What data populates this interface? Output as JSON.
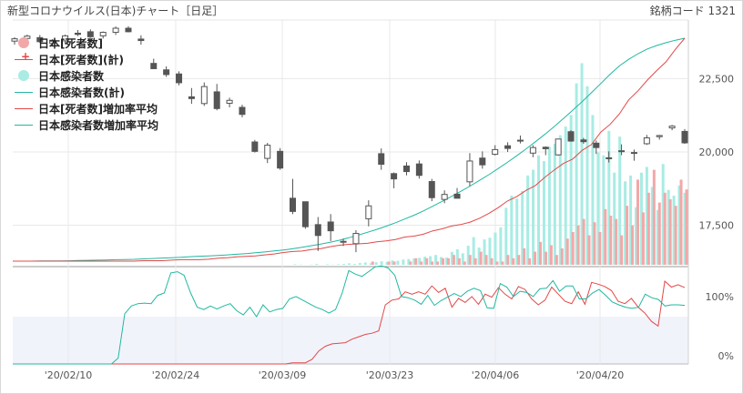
{
  "header": {
    "title": "新型コロナウイルス(日本)チャート［日足］",
    "code": "銘柄コード 1321"
  },
  "legend": {
    "items": [
      {
        "label": "日本[死者数]",
        "kind": "dot",
        "color": "#f2a8a8"
      },
      {
        "label": "日本[死者数](計)",
        "kind": "line-plus",
        "color": "#e34848"
      },
      {
        "label": "日本感染者数",
        "kind": "dot",
        "color": "#a8ece4"
      },
      {
        "label": "日本感染者数(計)",
        "kind": "line",
        "color": "#20b8a0"
      },
      {
        "label": "日本[死者数]増加率平均",
        "kind": "line",
        "color": "#e34848"
      },
      {
        "label": "日本感染者数増加率平均",
        "kind": "line",
        "color": "#20b8a0"
      }
    ]
  },
  "colors": {
    "deaths_bar": "#f2a8a8",
    "cases_bar": "#a8ece4",
    "deaths_line": "#e34848",
    "cases_line": "#20b8a0",
    "candle_down": "#555555",
    "candle_up": "#ffffff",
    "band": "#f1f3fb"
  },
  "chart_data": [
    {
      "type": "candlestick",
      "panel": "price",
      "y_ticks": [
        17500,
        20000,
        22500
      ],
      "ylim": [
        16150,
        24500
      ],
      "x_ticks": [
        "'20/02/10",
        "'20/02/24",
        "'20/03/09",
        "'20/03/23",
        "'20/04/06",
        "'20/04/20"
      ],
      "ohlc": [
        [
          23780,
          23910,
          23660,
          23860
        ],
        [
          23870,
          24000,
          23750,
          23950
        ],
        [
          23900,
          23990,
          23720,
          23760
        ],
        [
          23700,
          23850,
          23610,
          23810
        ],
        [
          23790,
          24000,
          23680,
          23960
        ],
        [
          24050,
          24160,
          23950,
          24010
        ],
        [
          24100,
          24180,
          23920,
          23930
        ],
        [
          23960,
          24110,
          23870,
          24080
        ],
        [
          24080,
          24280,
          23990,
          24220
        ],
        [
          24220,
          24290,
          24080,
          24100
        ],
        [
          23850,
          23980,
          23660,
          23800
        ],
        [
          23020,
          23180,
          22900,
          22840
        ],
        [
          22800,
          22920,
          22560,
          22640
        ],
        [
          22660,
          22750,
          22270,
          22360
        ],
        [
          21880,
          22180,
          21640,
          21820
        ],
        [
          21650,
          22370,
          21570,
          22230
        ],
        [
          22050,
          22320,
          21420,
          21480
        ],
        [
          21660,
          21850,
          21520,
          21760
        ],
        [
          21520,
          21610,
          21180,
          21280
        ],
        [
          20340,
          20410,
          19980,
          20020
        ],
        [
          19780,
          20310,
          19620,
          20230
        ],
        [
          20020,
          20130,
          19390,
          19450
        ],
        [
          18420,
          19080,
          17880,
          17970
        ],
        [
          18300,
          18300,
          17380,
          17450
        ],
        [
          17520,
          17780,
          16620,
          17150
        ],
        [
          17610,
          17880,
          16960,
          17310
        ],
        [
          16930,
          17040,
          16790,
          16950
        ],
        [
          16870,
          17330,
          16580,
          17220
        ],
        [
          17720,
          18350,
          17460,
          18160
        ],
        [
          19940,
          20120,
          19390,
          19580
        ],
        [
          19260,
          19300,
          18760,
          19080
        ],
        [
          19520,
          19650,
          19200,
          19330
        ],
        [
          19590,
          19710,
          19090,
          19200
        ],
        [
          18990,
          19080,
          18320,
          18440
        ],
        [
          18380,
          18690,
          18250,
          18550
        ],
        [
          18560,
          18770,
          18460,
          18420
        ],
        [
          18980,
          19960,
          18830,
          19690
        ],
        [
          19790,
          20020,
          19430,
          19560
        ],
        [
          19920,
          20230,
          19880,
          20080
        ],
        [
          20210,
          20330,
          20000,
          20120
        ],
        [
          20400,
          20560,
          20290,
          20390
        ],
        [
          19960,
          20230,
          19820,
          20150
        ],
        [
          20160,
          20190,
          19890,
          20110
        ],
        [
          19900,
          20400,
          19870,
          20440
        ],
        [
          20690,
          20740,
          20350,
          20370
        ],
        [
          20410,
          20480,
          20280,
          20350
        ],
        [
          20300,
          20390,
          19930,
          20150
        ],
        [
          19800,
          20020,
          19640,
          19780
        ],
        [
          20020,
          20260,
          19890,
          20040
        ],
        [
          19950,
          20080,
          19700,
          19980
        ],
        [
          20280,
          20580,
          20240,
          20480
        ],
        [
          20520,
          20580,
          20420,
          20560
        ],
        [
          20820,
          20920,
          20740,
          20880
        ],
        [
          20700,
          20780,
          20280,
          20310
        ]
      ]
    },
    {
      "type": "bar+line",
      "panel": "price-overlay",
      "description_axes": "secondary (unlabeled) scale",
      "series": [
        {
          "name": "日本感染者数",
          "type": "bar",
          "values": [
            2,
            1,
            0,
            1,
            3,
            0,
            2,
            1,
            2,
            3,
            5,
            3,
            6,
            8,
            5,
            9,
            12,
            10,
            15,
            14,
            18,
            20,
            22,
            24,
            28,
            30,
            34,
            27,
            25,
            45,
            54,
            40,
            66,
            96,
            60,
            88,
            94,
            112,
            130,
            198,
            240,
            230,
            256,
            310,
            330,
            380,
            360,
            410,
            420,
            450,
            480,
            520,
            630,
            700,
            620,
            520,
            390,
            380,
            465,
            320,
            445,
            290,
            310,
            200,
            320,
            340,
            270,
            190,
            350,
            260,
            240,
            275,
            250
          ]
        },
        {
          "name": "日本[死者数]",
          "type": "bar",
          "values": [
            0,
            0,
            0,
            0,
            0,
            0,
            0,
            0,
            0,
            0,
            0,
            0,
            0,
            0,
            1,
            0,
            0,
            1,
            1,
            0,
            0,
            1,
            2,
            1,
            2,
            1,
            1,
            2,
            2,
            3,
            2,
            1,
            3,
            2,
            4,
            3,
            2,
            1,
            1,
            3,
            2,
            3,
            5,
            2,
            4,
            7,
            4,
            6,
            3,
            5,
            8,
            10,
            12,
            14,
            9,
            13,
            10,
            17,
            15,
            14,
            9,
            18,
            12,
            26,
            16,
            22,
            29,
            19,
            22,
            20,
            18,
            26,
            23
          ]
        },
        {
          "name": "日本感染者数(計)",
          "type": "line",
          "values": [
            0,
            0,
            0,
            1,
            1,
            1,
            2,
            3,
            4,
            5,
            6,
            7,
            8,
            9,
            11,
            13,
            15,
            17,
            19,
            22,
            24,
            26,
            28,
            31,
            34,
            37,
            41,
            45,
            50,
            55,
            61,
            68,
            76,
            84,
            93,
            103,
            115,
            128,
            142,
            156,
            172,
            189,
            207,
            226,
            247,
            270,
            294,
            318,
            343,
            369,
            397,
            425,
            455,
            486,
            518,
            552,
            587,
            623,
            661,
            701,
            742,
            784,
            828,
            873,
            919,
            960,
            992,
            1020,
            1043,
            1060,
            1074,
            1086,
            1096
          ]
        },
        {
          "name": "日本[死者数](計)",
          "type": "line",
          "values": [
            0,
            0,
            0,
            0,
            0,
            0,
            0,
            0,
            0,
            0,
            0,
            0,
            0,
            0,
            1,
            1,
            1,
            2,
            3,
            3,
            3,
            4,
            6,
            7,
            9,
            10,
            11,
            13,
            15,
            18,
            20,
            21,
            24,
            26,
            30,
            33,
            35,
            36,
            37,
            40,
            42,
            45,
            50,
            52,
            56,
            63,
            67,
            73,
            76,
            81,
            89,
            99,
            111,
            125,
            134,
            147,
            157,
            174,
            189,
            203,
            212,
            230,
            242,
            268,
            284,
            306,
            335,
            354,
            376,
            396,
            414,
            440,
            463
          ]
        }
      ]
    },
    {
      "type": "line",
      "panel": "growth-rate",
      "y_ticks": [
        "0%",
        "100%"
      ],
      "series": [
        {
          "name": "日本[死者数]増加率平均",
          "values": [
            0,
            0,
            0,
            0,
            0,
            0,
            0,
            0,
            0,
            0,
            0,
            0,
            0,
            0,
            0,
            0,
            0,
            0,
            0,
            0,
            0,
            0,
            0,
            0,
            0,
            0,
            0,
            0,
            0,
            0,
            0,
            0,
            0,
            0,
            0,
            0,
            0,
            0,
            0,
            0,
            0,
            0,
            2,
            2,
            2,
            8,
            22,
            30,
            34,
            35,
            36,
            42,
            46,
            50,
            52,
            56,
            100,
            108,
            110,
            122,
            118,
            122,
            118,
            132,
            121,
            128,
            96,
            111,
            104,
            114,
            101,
            118,
            113,
            129,
            118,
            110,
            131,
            126,
            110,
            100,
            108,
            130,
            118,
            106,
            102,
            122,
            101,
            138,
            135,
            131,
            124,
            106,
            102,
            111,
            96,
            86,
            72,
            64,
            140,
            130,
            134,
            129
          ]
        },
        {
          "name": "日本感染者数増加率平均",
          "values": [
            0,
            0,
            0,
            0,
            0,
            0,
            0,
            0,
            0,
            0,
            0,
            0,
            0,
            0,
            0,
            0,
            10,
            85,
            98,
            102,
            103,
            102,
            116,
            120,
            154,
            156,
            150,
            120,
            96,
            92,
            98,
            93,
            98,
            102,
            90,
            83,
            96,
            80,
            100,
            88,
            92,
            94,
            110,
            114,
            108,
            102,
            96,
            92,
            86,
            92,
            120,
            158,
            152,
            148,
            156,
            164,
            166,
            162,
            150,
            114,
            112,
            108,
            101,
            116,
            99,
            107,
            113,
            119,
            114,
            123,
            128,
            124,
            95,
            94,
            136,
            130,
            114,
            123,
            121,
            114,
            127,
            128,
            141,
            123,
            132,
            132,
            110,
            110,
            120,
            126,
            116,
            105,
            100,
            96,
            94,
            96,
            118,
            112,
            109,
            98,
            100,
            100,
            99
          ]
        }
      ]
    }
  ]
}
